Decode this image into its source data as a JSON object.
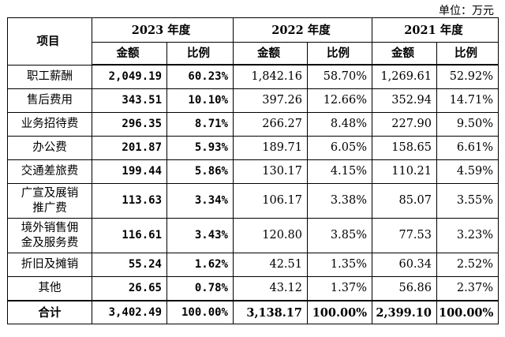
{
  "unit_label": "单位：万元",
  "header": {
    "item": "项目",
    "years": [
      "2023 年度",
      "2022 年度",
      "2021 年度"
    ],
    "amount": "金额",
    "ratio": "比例"
  },
  "rows": [
    {
      "label": "职工薪酬",
      "v2023": "2,049.19",
      "p2023": "60.23%",
      "v2022": "1,842.16",
      "p2022": "58.70%",
      "v2021": "1,269.61",
      "p2021": "52.92%"
    },
    {
      "label": "售后费用",
      "v2023": "343.51",
      "p2023": "10.10%",
      "v2022": "397.26",
      "p2022": "12.66%",
      "v2021": "352.94",
      "p2021": "14.71%"
    },
    {
      "label": "业务招待费",
      "v2023": "296.35",
      "p2023": "8.71%",
      "v2022": "266.27",
      "p2022": "8.48%",
      "v2021": "227.90",
      "p2021": "9.50%"
    },
    {
      "label": "办公费",
      "v2023": "201.87",
      "p2023": "5.93%",
      "v2022": "189.71",
      "p2022": "6.05%",
      "v2021": "158.65",
      "p2021": "6.61%"
    },
    {
      "label": "交通差旅费",
      "v2023": "199.44",
      "p2023": "5.86%",
      "v2022": "130.17",
      "p2022": "4.15%",
      "v2021": "110.21",
      "p2021": "4.59%"
    },
    {
      "label": "广宣及展销推广费",
      "v2023": "113.63",
      "p2023": "3.34%",
      "v2022": "106.17",
      "p2022": "3.38%",
      "v2021": "85.07",
      "p2021": "3.55%"
    },
    {
      "label": "境外销售佣金及服务费",
      "v2023": "116.61",
      "p2023": "3.43%",
      "v2022": "120.80",
      "p2022": "3.85%",
      "v2021": "77.53",
      "p2021": "3.23%"
    },
    {
      "label": "折旧及摊销",
      "v2023": "55.24",
      "p2023": "1.62%",
      "v2022": "42.51",
      "p2022": "1.35%",
      "v2021": "60.34",
      "p2021": "2.52%"
    },
    {
      "label": "其他",
      "v2023": "26.65",
      "p2023": "0.78%",
      "v2022": "43.12",
      "p2022": "1.37%",
      "v2021": "56.86",
      "p2021": "2.37%"
    }
  ],
  "total": {
    "label": "合计",
    "v2023": "3,402.49",
    "p2023": "100.00%",
    "v2022": "3,138.17",
    "p2022": "100.00%",
    "v2021": "2,399.10",
    "p2021": "100.00%"
  }
}
